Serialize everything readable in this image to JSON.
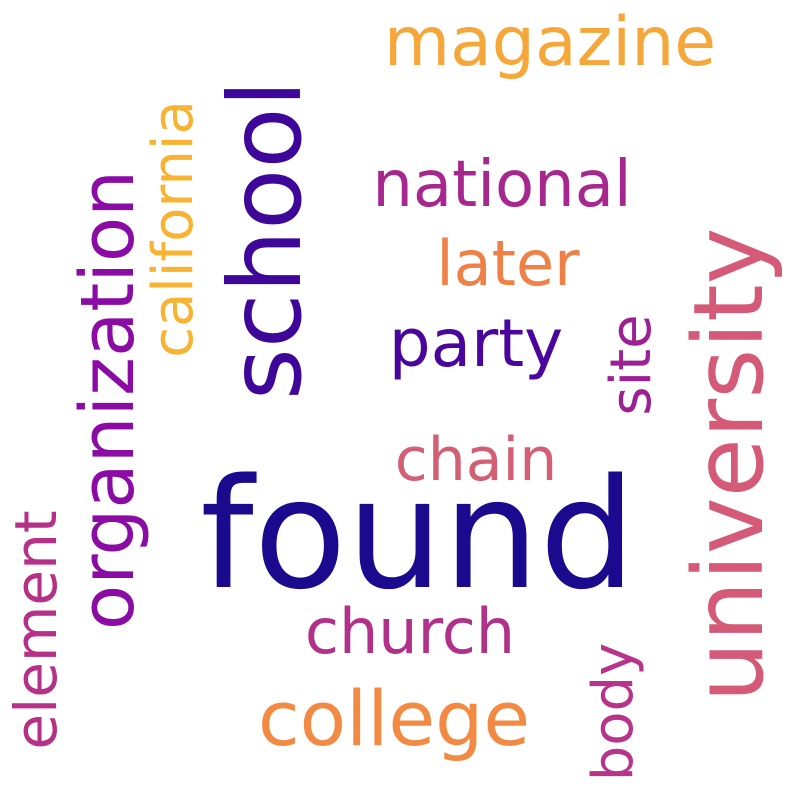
{
  "words": [
    {
      "text": "found",
      "color": "#1c0a8e"
    },
    {
      "text": "university",
      "color": "#d45a78"
    },
    {
      "text": "school",
      "color": "#3f0799"
    },
    {
      "text": "organization",
      "color": "#8a0ca4"
    },
    {
      "text": "college",
      "color": "#f28a44"
    },
    {
      "text": "magazine",
      "color": "#f6a73a"
    },
    {
      "text": "california",
      "color": "#f8b333"
    },
    {
      "text": "national",
      "color": "#a6288f"
    },
    {
      "text": "later",
      "color": "#ef8046"
    },
    {
      "text": "party",
      "color": "#4a069c"
    },
    {
      "text": "chain",
      "color": "#d35f75"
    },
    {
      "text": "site",
      "color": "#9c1f94"
    },
    {
      "text": "church",
      "color": "#b0308a"
    },
    {
      "text": "element",
      "color": "#b53087"
    },
    {
      "text": "body",
      "color": "#b7348a"
    }
  ]
}
